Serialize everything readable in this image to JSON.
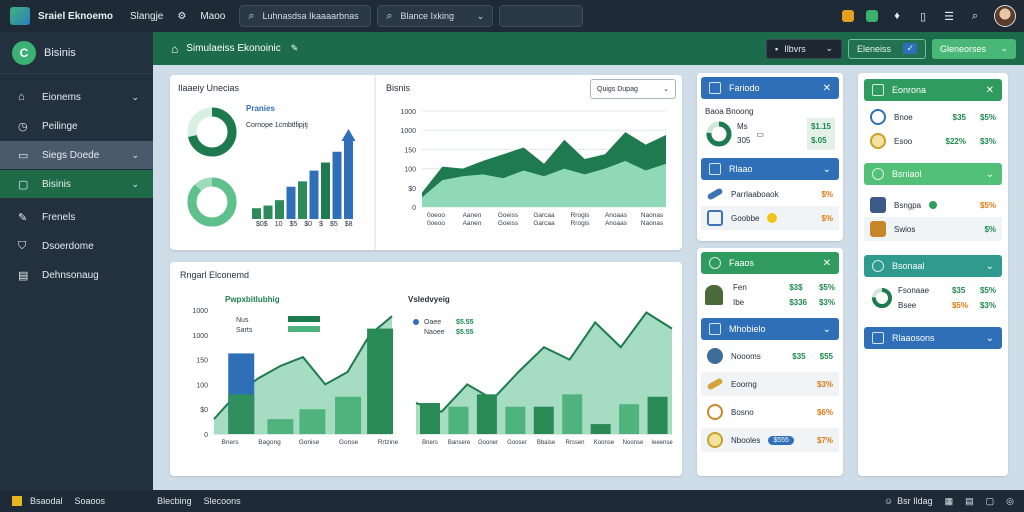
{
  "app": {
    "title": "Sraiel Eknoemo"
  },
  "topnav": {
    "items": [
      "Slangje",
      "Maoo"
    ]
  },
  "search": {
    "main": "Luhnasdsa Ikaaaarbnas",
    "second": "Blance Ixking"
  },
  "header": {
    "title": "Simulaeiss Ekonoinic",
    "btn_dark": "Ilbvrs",
    "btn_outline": "Eleneiss",
    "btn_green": "Gleneorses"
  },
  "sidebar": {
    "brand": "Bisinis",
    "items": [
      {
        "label": "Eionems",
        "icon": "home-icon"
      },
      {
        "label": "Peilinge",
        "icon": "clock-icon"
      },
      {
        "label": "Siegs Doede",
        "icon": "monitor-icon"
      },
      {
        "label": "Bisinis",
        "icon": "chat-icon"
      },
      {
        "label": "Frenels",
        "icon": "edit-icon"
      },
      {
        "label": "Dsoerdome",
        "icon": "shield-icon"
      },
      {
        "label": "Dehnsonaug",
        "icon": "document-icon"
      }
    ]
  },
  "card1": {
    "title": "Ilaaeiy Unecias",
    "legend_title": "Pranies",
    "legend_sub": "Cornope 1cmbtlfipjtj",
    "bar_labels": [
      "$0$",
      "10",
      "$5",
      "$0",
      "$",
      "$5",
      "$8"
    ],
    "bar_values": [
      8,
      10,
      14,
      24,
      28,
      36,
      42,
      50,
      58
    ]
  },
  "card2": {
    "title": "Bisnis",
    "search_label": "Quigs Dupag",
    "y_ticks": [
      "1000",
      "1000",
      "150",
      "100",
      "$0",
      "0"
    ],
    "x_labels": [
      "0oeoo",
      "Aanen",
      "Goeiss",
      "Garcaa",
      "Rrogis",
      "Anoaas",
      "Naonas"
    ]
  },
  "card3": {
    "title": "Rngarl Elconemd",
    "left_title": "Pwpxbitlubhig",
    "legend_left": [
      "Nus",
      "Sarts"
    ],
    "y_ticks": [
      "1000",
      "1000",
      "150",
      "100",
      "$0",
      "0"
    ],
    "x_labels": [
      "Bners",
      "Bagong",
      "Gonise",
      "Gonse",
      "Rrtzine"
    ],
    "right_title": "Vsledvyeig",
    "legend_right": [
      "Oaee",
      "Naoee"
    ],
    "legend_right_vals": [
      "$5.55",
      "$5.55"
    ],
    "x_labels_right": [
      "Bners",
      "Bansere",
      "Gooner",
      "Gooser",
      "Bbaise",
      "Rrssen",
      "Koonse",
      "Noonse",
      "Ieeense"
    ]
  },
  "panel_a": {
    "title": "Fariodo",
    "sub": "Baoa Bnoong",
    "rows": [
      [
        "Ms",
        "$1.15"
      ],
      [
        "305",
        "$.05"
      ]
    ]
  },
  "panel_b": {
    "title": "Rlaao",
    "rows": [
      {
        "label": "Parrlaaboaok",
        "value": "$%"
      },
      {
        "label": "Goobbe",
        "value": "$%"
      }
    ]
  },
  "panel_c": {
    "title": "Faaos",
    "rows": [
      {
        "label": "Fen",
        "v1": "$3$",
        "v2": "$5%"
      },
      {
        "label": "Ibe",
        "v1": "$336",
        "v2": "$3%"
      }
    ]
  },
  "panel_d": {
    "title": "Mhobielo",
    "rows": [
      {
        "label": "Noooms",
        "v1": "$35",
        "v2": "$55"
      },
      {
        "label": "Eoorng",
        "v1": "",
        "v2": "$3%"
      },
      {
        "label": "Bosno",
        "v1": "",
        "v2": "$6%"
      },
      {
        "label": "Nbooles",
        "v1": "$555",
        "v2": "$7%"
      }
    ]
  },
  "panel_e": {
    "title": "Eonrona",
    "rows": [
      {
        "label": "Bnoe",
        "v1": "$35",
        "v2": "$5%"
      },
      {
        "label": "Esoo",
        "v1": "$22%",
        "v2": "$3%"
      }
    ]
  },
  "panel_f": {
    "title": "Bsniaol",
    "rows": [
      {
        "label": "Bsngpa",
        "v1": "",
        "v2": "$5%"
      },
      {
        "label": "Swios",
        "v1": "",
        "v2": "$%"
      }
    ]
  },
  "panel_g": {
    "title": "Bsonaal",
    "rows": [
      {
        "label": "Fsonaae",
        "v1": "$35",
        "v2": "$5%"
      },
      {
        "label": "Bsee",
        "v1": "$5%",
        "v2": "$3%"
      }
    ]
  },
  "panel_h": {
    "title": "Rlaaosons"
  },
  "statusbar": {
    "left1": "Bsaodal",
    "left2": "Soaoos",
    "mid1": "Blecbing",
    "mid2": "Slecoons",
    "right": "Bsr Ildag"
  }
}
